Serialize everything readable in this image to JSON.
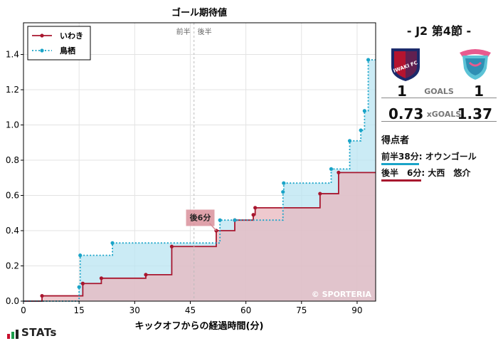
{
  "chart_data": {
    "type": "line",
    "title": "ゴール期待値",
    "xlabel": "キックオフからの経過時間(分)",
    "ylabel": "",
    "xlim": [
      0,
      95
    ],
    "ylim": [
      0,
      1.58
    ],
    "xticks": [
      0,
      15,
      30,
      45,
      60,
      75,
      90
    ],
    "yticks": [
      0.0,
      0.2,
      0.4,
      0.6,
      0.8,
      1.0,
      1.2,
      1.4
    ],
    "grid": true,
    "legend": "top-left",
    "halftime_x": 46,
    "halftime_labels": [
      "前半",
      "後半"
    ],
    "watermark": "© SPORTERIA",
    "series": [
      {
        "name": "いわき",
        "color": "#a8162e",
        "fill": "#e8b7be",
        "style": "solid",
        "x": [
          0,
          5,
          16,
          21,
          33,
          40,
          52,
          57,
          62,
          62.5,
          80,
          85,
          95
        ],
        "y": [
          0,
          0.03,
          0.1,
          0.13,
          0.15,
          0.31,
          0.4,
          0.46,
          0.49,
          0.53,
          0.61,
          0.73,
          0.73
        ]
      },
      {
        "name": "鳥栖",
        "color": "#1aa4c8",
        "fill": "#b9e4f1",
        "style": "dotted",
        "x": [
          0,
          15,
          15.3,
          24,
          53,
          57,
          70,
          70.2,
          83,
          88,
          91,
          92,
          93,
          95
        ],
        "y": [
          0,
          0.08,
          0.26,
          0.33,
          0.46,
          0.46,
          0.62,
          0.67,
          0.75,
          0.91,
          0.97,
          1.08,
          1.37,
          1.37
        ]
      }
    ],
    "annotations": [
      {
        "text": "後6分",
        "x": 52,
        "y": 0.4,
        "label_x": 47.5,
        "label_y": 0.475,
        "color": "#d78a95"
      }
    ]
  },
  "match": {
    "title": "- J2 第4節 -",
    "home_score": "1",
    "away_score": "1",
    "goals_label": "GOALS",
    "home_xg": "0.73",
    "away_xg": "1.37",
    "xg_label": "xGOALS",
    "home_color": "#a8162e",
    "away_color": "#1aa4c8",
    "home_crest_text": "IWAKI FC"
  },
  "scorers": {
    "heading": "得点者",
    "items": [
      {
        "time": "前半38分",
        "name": "オウンゴール",
        "color": "#1aa4c8"
      },
      {
        "time": "後半　6分",
        "name": "大西　悠介",
        "color": "#a8162e"
      }
    ]
  },
  "brand": "STATs"
}
